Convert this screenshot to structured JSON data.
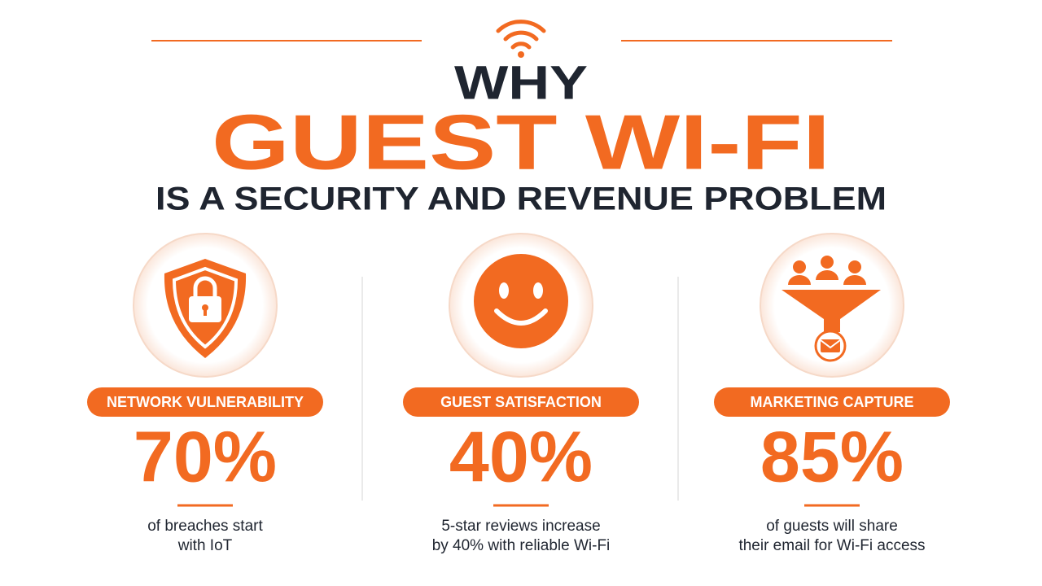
{
  "header": {
    "eyebrow": "WHY",
    "title": "GUEST WI-FI",
    "subtitle": "IS A SECURITY AND REVENUE PROBLEM"
  },
  "cards": [
    {
      "label": "NETWORK VULNERABILITY",
      "stat": "70%",
      "description": [
        "of breaches start",
        "with IoT"
      ]
    },
    {
      "label": "GUEST SATISFACTION",
      "stat": "40%",
      "description": [
        "5-star reviews increase",
        "by 40% with reliable Wi-Fi"
      ]
    },
    {
      "label": "MARKETING CAPTURE",
      "stat": "85%",
      "description": [
        "of guests will share",
        "their email for Wi-Fi access"
      ]
    }
  ]
}
